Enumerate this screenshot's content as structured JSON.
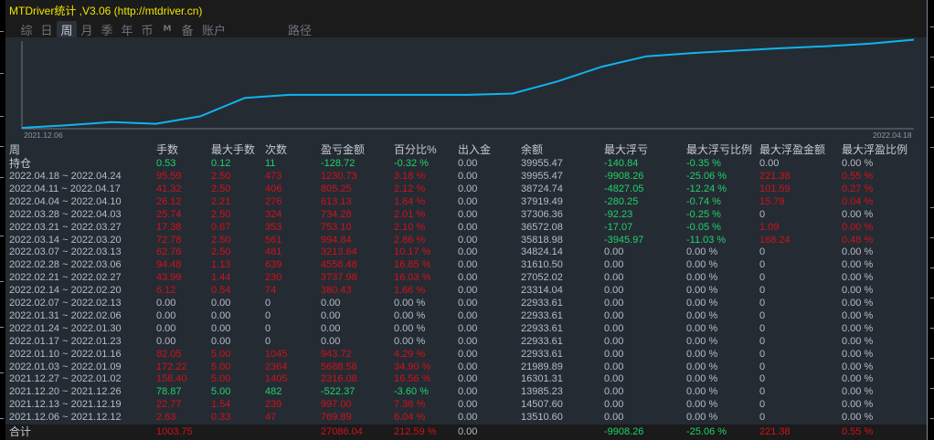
{
  "window": {
    "title": "MTDriver统计 ,V3.06 (http://mtdriver.cn)",
    "title_color": "#f2e600"
  },
  "toolbar": {
    "items": [
      {
        "label": "综",
        "active": false
      },
      {
        "label": "日",
        "active": false
      },
      {
        "label": "周",
        "active": true
      },
      {
        "label": "月",
        "active": false
      },
      {
        "label": "季",
        "active": false
      },
      {
        "label": "年",
        "active": false
      },
      {
        "label": "币",
        "active": false
      },
      {
        "label": "M",
        "active": false
      },
      {
        "label": "备",
        "active": false
      },
      {
        "label": "账户",
        "active": false
      }
    ],
    "path_label": "路径"
  },
  "colors": {
    "background": "#252b33",
    "line": "#0fb4f0",
    "profit": "#d0121b",
    "loss": "#1ed36a",
    "neutral": "#b5bcc8"
  },
  "chart_data": {
    "type": "line",
    "title": "",
    "xlabel": "",
    "ylabel": "余额",
    "x_start_label": "2021.12.06",
    "x_end_label": "2022.04.18",
    "x": [
      "2021.12.06",
      "2021.12.13",
      "2021.12.20",
      "2021.12.27",
      "2022.01.03",
      "2022.01.10",
      "2022.01.17",
      "2022.01.24",
      "2022.01.31",
      "2022.02.07",
      "2022.02.14",
      "2022.02.21",
      "2022.02.28",
      "2022.03.07",
      "2022.03.14",
      "2022.03.21",
      "2022.03.28",
      "2022.04.04",
      "2022.04.11",
      "2022.04.18",
      "2022.04.24"
    ],
    "series": [
      {
        "name": "余额",
        "values": [
          12740.71,
          13510.6,
          14507.6,
          13985.23,
          16301.31,
          21989.89,
          22933.61,
          22933.61,
          22933.61,
          22933.61,
          22933.61,
          23314.04,
          27052.02,
          31610.5,
          34824.14,
          35818.98,
          36572.08,
          37306.36,
          37919.49,
          38724.74,
          39955.47
        ]
      }
    ],
    "grid": false,
    "legend": "none"
  },
  "table": {
    "headers": [
      "周",
      "手数",
      "最大手数",
      "次数",
      "盈亏金额",
      "百分比%",
      "出入金",
      "余额",
      "最大浮亏",
      "最大浮亏比例",
      "最大浮盈金额",
      "最大浮盈比例"
    ],
    "holding": {
      "label": "持仓",
      "cells": [
        "0.53",
        "0.12",
        "11",
        "-128.72",
        "-0.32 %",
        "0.00",
        "39955.47",
        "-140.84",
        "-0.35 %",
        "0.00",
        "0.00 %"
      ],
      "colors": [
        "green",
        "green",
        "green",
        "green",
        "green",
        "gray",
        "gray",
        "green",
        "green",
        "gray",
        "gray"
      ]
    },
    "rows": [
      {
        "period": "2022.04.18 ~ 2022.04.24",
        "cells": [
          "95.59",
          "2.50",
          "473",
          "1230.73",
          "3.18 %",
          "0.00",
          "39955.47",
          "-9908.26",
          "-25.06 %",
          "221.38",
          "0.55 %"
        ],
        "colors": [
          "red",
          "red",
          "red",
          "red",
          "red",
          "gray",
          "gray",
          "green",
          "green",
          "red",
          "red"
        ]
      },
      {
        "period": "2022.04.11 ~ 2022.04.17",
        "cells": [
          "41.32",
          "2.50",
          "406",
          "805.25",
          "2.12 %",
          "0.00",
          "38724.74",
          "-4827.05",
          "-12.24 %",
          "101.59",
          "0.27 %"
        ],
        "colors": [
          "red",
          "red",
          "red",
          "red",
          "red",
          "gray",
          "gray",
          "green",
          "green",
          "red",
          "red"
        ]
      },
      {
        "period": "2022.04.04 ~ 2022.04.10",
        "cells": [
          "26.12",
          "2.21",
          "276",
          "613.13",
          "1.64 %",
          "0.00",
          "37919.49",
          "-280.25",
          "-0.74 %",
          "15.79",
          "0.04 %"
        ],
        "colors": [
          "red",
          "red",
          "red",
          "red",
          "red",
          "gray",
          "gray",
          "green",
          "green",
          "red",
          "red"
        ]
      },
      {
        "period": "2022.03.28 ~ 2022.04.03",
        "cells": [
          "25.74",
          "2.50",
          "324",
          "734.28",
          "2.01 %",
          "0.00",
          "37306.36",
          "-92.23",
          "-0.25 %",
          "0",
          "0.00 %"
        ],
        "colors": [
          "red",
          "red",
          "red",
          "red",
          "red",
          "gray",
          "gray",
          "green",
          "green",
          "gray",
          "gray"
        ]
      },
      {
        "period": "2022.03.21 ~ 2022.03.27",
        "cells": [
          "17.38",
          "0.67",
          "353",
          "753.10",
          "2.10 %",
          "0.00",
          "36572.08",
          "-17.07",
          "-0.05 %",
          "1.09",
          "0.00 %"
        ],
        "colors": [
          "red",
          "red",
          "red",
          "red",
          "red",
          "gray",
          "gray",
          "green",
          "green",
          "red",
          "red"
        ]
      },
      {
        "period": "2022.03.14 ~ 2022.03.20",
        "cells": [
          "72.78",
          "2.50",
          "561",
          "994.84",
          "2.86 %",
          "0.00",
          "35818.98",
          "-3945.97",
          "-11.03 %",
          "168.24",
          "0.48 %"
        ],
        "colors": [
          "red",
          "red",
          "red",
          "red",
          "red",
          "gray",
          "gray",
          "green",
          "green",
          "red",
          "red"
        ]
      },
      {
        "period": "2022.03.07 ~ 2022.03.13",
        "cells": [
          "62.76",
          "2.50",
          "481",
          "3213.64",
          "10.17 %",
          "0.00",
          "34824.14",
          "0.00",
          "0.00 %",
          "0",
          "0.00 %"
        ],
        "colors": [
          "red",
          "red",
          "red",
          "red",
          "red",
          "gray",
          "gray",
          "gray",
          "gray",
          "gray",
          "gray"
        ]
      },
      {
        "period": "2022.02.28 ~ 2022.03.06",
        "cells": [
          "94.48",
          "1.13",
          "639",
          "4558.48",
          "16.85 %",
          "0.00",
          "31610.50",
          "0.00",
          "0.00 %",
          "0",
          "0.00 %"
        ],
        "colors": [
          "red",
          "red",
          "red",
          "red",
          "red",
          "gray",
          "gray",
          "gray",
          "gray",
          "gray",
          "gray"
        ]
      },
      {
        "period": "2022.02.21 ~ 2022.02.27",
        "cells": [
          "43.99",
          "1.44",
          "230",
          "3737.98",
          "16.03 %",
          "0.00",
          "27052.02",
          "0.00",
          "0.00 %",
          "0",
          "0.00 %"
        ],
        "colors": [
          "red",
          "red",
          "red",
          "red",
          "red",
          "gray",
          "gray",
          "gray",
          "gray",
          "gray",
          "gray"
        ]
      },
      {
        "period": "2022.02.14 ~ 2022.02.20",
        "cells": [
          "6.12",
          "0.54",
          "74",
          "380.43",
          "1.66 %",
          "0.00",
          "23314.04",
          "0.00",
          "0.00 %",
          "0",
          "0.00 %"
        ],
        "colors": [
          "red",
          "red",
          "red",
          "red",
          "red",
          "gray",
          "gray",
          "gray",
          "gray",
          "gray",
          "gray"
        ]
      },
      {
        "period": "2022.02.07 ~ 2022.02.13",
        "cells": [
          "0.00",
          "0.00",
          "0",
          "0.00",
          "0.00 %",
          "0.00",
          "22933.61",
          "0.00",
          "0.00 %",
          "0",
          "0.00 %"
        ],
        "colors": [
          "gray",
          "gray",
          "gray",
          "gray",
          "gray",
          "gray",
          "gray",
          "gray",
          "gray",
          "gray",
          "gray"
        ]
      },
      {
        "period": "2022.01.31 ~ 2022.02.06",
        "cells": [
          "0.00",
          "0.00",
          "0",
          "0.00",
          "0.00 %",
          "0.00",
          "22933.61",
          "0.00",
          "0.00 %",
          "0",
          "0.00 %"
        ],
        "colors": [
          "gray",
          "gray",
          "gray",
          "gray",
          "gray",
          "gray",
          "gray",
          "gray",
          "gray",
          "gray",
          "gray"
        ]
      },
      {
        "period": "2022.01.24 ~ 2022.01.30",
        "cells": [
          "0.00",
          "0.00",
          "0",
          "0.00",
          "0.00 %",
          "0.00",
          "22933.61",
          "0.00",
          "0.00 %",
          "0",
          "0.00 %"
        ],
        "colors": [
          "gray",
          "gray",
          "gray",
          "gray",
          "gray",
          "gray",
          "gray",
          "gray",
          "gray",
          "gray",
          "gray"
        ]
      },
      {
        "period": "2022.01.17 ~ 2022.01.23",
        "cells": [
          "0.00",
          "0.00",
          "0",
          "0.00",
          "0.00 %",
          "0.00",
          "22933.61",
          "0.00",
          "0.00 %",
          "0",
          "0.00 %"
        ],
        "colors": [
          "gray",
          "gray",
          "gray",
          "gray",
          "gray",
          "gray",
          "gray",
          "gray",
          "gray",
          "gray",
          "gray"
        ]
      },
      {
        "period": "2022.01.10 ~ 2022.01.16",
        "cells": [
          "82.05",
          "5.00",
          "1045",
          "943.72",
          "4.29 %",
          "0.00",
          "22933.61",
          "0.00",
          "0.00 %",
          "0",
          "0.00 %"
        ],
        "colors": [
          "red",
          "red",
          "red",
          "red",
          "red",
          "gray",
          "gray",
          "gray",
          "gray",
          "gray",
          "gray"
        ]
      },
      {
        "period": "2022.01.03 ~ 2022.01.09",
        "cells": [
          "172.22",
          "5.00",
          "2364",
          "5688.58",
          "34.90 %",
          "0.00",
          "21989.89",
          "0.00",
          "0.00 %",
          "0",
          "0.00 %"
        ],
        "colors": [
          "red",
          "red",
          "red",
          "red",
          "red",
          "gray",
          "gray",
          "gray",
          "gray",
          "gray",
          "gray"
        ]
      },
      {
        "period": "2021.12.27 ~ 2022.01.02",
        "cells": [
          "158.40",
          "5.00",
          "1405",
          "2316.08",
          "16.56 %",
          "0.00",
          "16301.31",
          "0.00",
          "0.00 %",
          "0",
          "0.00 %"
        ],
        "colors": [
          "red",
          "red",
          "red",
          "red",
          "red",
          "gray",
          "gray",
          "gray",
          "gray",
          "gray",
          "gray"
        ]
      },
      {
        "period": "2021.12.20 ~ 2021.12.26",
        "cells": [
          "78.87",
          "5.00",
          "482",
          "-522.37",
          "-3.60 %",
          "0.00",
          "13985.23",
          "0.00",
          "0.00 %",
          "0",
          "0.00 %"
        ],
        "colors": [
          "green",
          "green",
          "green",
          "green",
          "green",
          "gray",
          "gray",
          "gray",
          "gray",
          "gray",
          "gray"
        ]
      },
      {
        "period": "2021.12.13 ~ 2021.12.19",
        "cells": [
          "22.77",
          "1.54",
          "239",
          "997.00",
          "7.38 %",
          "0.00",
          "14507.60",
          "0.00",
          "0.00 %",
          "0",
          "0.00 %"
        ],
        "colors": [
          "red",
          "red",
          "red",
          "red",
          "red",
          "gray",
          "gray",
          "gray",
          "gray",
          "gray",
          "gray"
        ]
      },
      {
        "period": "2021.12.06 ~ 2021.12.12",
        "cells": [
          "2.63",
          "0.33",
          "47",
          "769.89",
          "6.04 %",
          "0.00",
          "13510.60",
          "0.00",
          "0.00 %",
          "0",
          "0.00 %"
        ],
        "colors": [
          "red",
          "red",
          "red",
          "red",
          "red",
          "gray",
          "gray",
          "gray",
          "gray",
          "gray",
          "gray"
        ]
      }
    ],
    "total": {
      "label": "合计",
      "cells": [
        "1003.75",
        "",
        "",
        "27086.04",
        "212.59 %",
        "0.00",
        "",
        "-9908.26",
        "-25.06 %",
        "221.38",
        "0.55 %"
      ],
      "colors": [
        "red",
        "gray",
        "gray",
        "red",
        "red",
        "gray",
        "gray",
        "green",
        "green",
        "red",
        "red"
      ]
    }
  }
}
